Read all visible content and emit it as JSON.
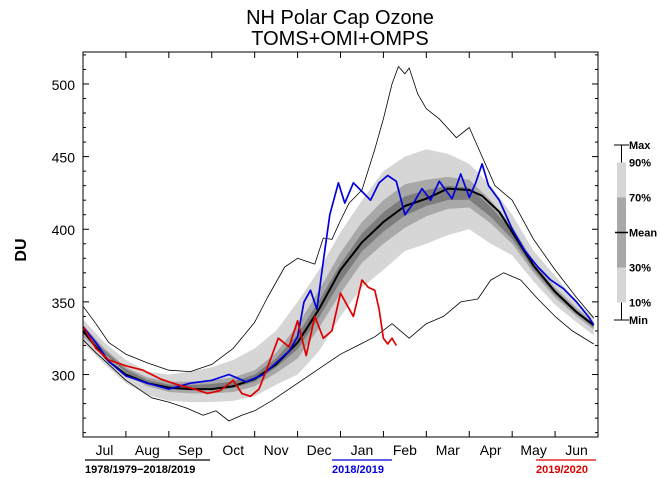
{
  "chart_data": {
    "type": "line",
    "title": "NH Polar Cap Ozone",
    "subtitle": "TOMS+OMI+OMPS",
    "ylabel": "DU",
    "ylim": [
      257,
      522
    ],
    "yticks": [
      300,
      350,
      400,
      450,
      500
    ],
    "months": [
      "Jul",
      "Aug",
      "Sep",
      "Oct",
      "Nov",
      "Dec",
      "Jan",
      "Feb",
      "Mar",
      "Apr",
      "May",
      "Jun"
    ],
    "xlim": [
      0,
      12
    ],
    "colors": {
      "mean": "#000000",
      "y2018": "#0000dd",
      "y2020": "#dd0000",
      "minmax": "#000000",
      "band90": "#d6d6d6",
      "band70": "#a8a8a8",
      "band_inner": "#7d7d7d"
    },
    "series": {
      "max": {
        "x": [
          0,
          0.3,
          0.6,
          1.0,
          1.5,
          2.0,
          2.5,
          3.0,
          3.5,
          4.0,
          4.3,
          4.7,
          5.0,
          5.4,
          5.6,
          5.8,
          6.0,
          6.2,
          6.5,
          6.8,
          7.0,
          7.2,
          7.35,
          7.5,
          7.6,
          7.8,
          8.0,
          8.3,
          8.7,
          9.0,
          9.3,
          9.6,
          10.0,
          10.5,
          11.0,
          11.5,
          11.9
        ],
        "y": [
          347,
          335,
          322,
          314,
          308,
          303,
          302,
          307,
          318,
          336,
          353,
          374,
          380,
          376,
          394,
          393,
          406,
          418,
          427,
          455,
          476,
          500,
          512,
          507,
          511,
          493,
          483,
          476,
          463,
          470,
          450,
          430,
          420,
          393,
          372,
          353,
          339
        ]
      },
      "min": {
        "x": [
          0,
          0.3,
          0.6,
          1.0,
          1.3,
          1.6,
          2.0,
          2.4,
          2.8,
          3.1,
          3.4,
          3.7,
          4.0,
          4.4,
          4.8,
          5.2,
          5.6,
          6.0,
          6.4,
          6.8,
          7.2,
          7.6,
          8.0,
          8.4,
          8.8,
          9.2,
          9.5,
          9.8,
          10.2,
          10.6,
          11.0,
          11.4,
          11.9
        ],
        "y": [
          324,
          315,
          307,
          296,
          290,
          284,
          281,
          277,
          272,
          275,
          268,
          272,
          275,
          282,
          290,
          298,
          306,
          314,
          320,
          326,
          335,
          325,
          335,
          340,
          350,
          352,
          365,
          370,
          365,
          352,
          340,
          330,
          321
        ]
      },
      "mean": {
        "x": [
          0,
          0.3,
          0.6,
          1.0,
          1.5,
          2.0,
          2.5,
          3.0,
          3.5,
          4.0,
          4.5,
          5.0,
          5.5,
          6.0,
          6.5,
          7.0,
          7.5,
          8.0,
          8.5,
          9.0,
          9.3,
          9.7,
          10.0,
          10.5,
          11.0,
          11.5,
          11.9
        ],
        "y": [
          330,
          319,
          309,
          300,
          294,
          291,
          290,
          290,
          292,
          297,
          307,
          322,
          345,
          372,
          391,
          405,
          416,
          421,
          428,
          427,
          423,
          412,
          398,
          375,
          357,
          343,
          334
        ]
      },
      "y2018": {
        "x": [
          0,
          0.3,
          0.6,
          1.0,
          1.5,
          2.0,
          2.5,
          3.0,
          3.4,
          3.8,
          4.2,
          4.5,
          4.8,
          5.0,
          5.15,
          5.3,
          5.45,
          5.6,
          5.75,
          5.95,
          6.1,
          6.3,
          6.5,
          6.7,
          6.9,
          7.1,
          7.3,
          7.5,
          7.7,
          7.9,
          8.1,
          8.3,
          8.6,
          8.8,
          9.0,
          9.15,
          9.3,
          9.45,
          9.7,
          10.0,
          10.3,
          10.6,
          10.9,
          11.2,
          11.5,
          11.8,
          11.9
        ],
        "y": [
          333,
          322,
          309,
          299,
          294,
          290,
          294,
          296,
          300,
          295,
          300,
          308,
          316,
          326,
          350,
          358,
          345,
          378,
          410,
          432,
          418,
          432,
          426,
          420,
          432,
          437,
          433,
          410,
          418,
          428,
          420,
          433,
          421,
          438,
          422,
          432,
          445,
          430,
          420,
          400,
          385,
          374,
          365,
          359,
          350,
          339,
          334
        ]
      },
      "y2020": {
        "x": [
          0,
          0.3,
          0.6,
          1.0,
          1.4,
          1.8,
          2.2,
          2.6,
          2.9,
          3.2,
          3.5,
          3.7,
          3.9,
          4.1,
          4.3,
          4.55,
          4.8,
          5.0,
          5.2,
          5.4,
          5.6,
          5.8,
          6.0,
          6.15,
          6.3,
          6.5,
          6.65,
          6.8,
          6.9,
          7.0,
          7.1,
          7.2,
          7.3
        ],
        "y": [
          333,
          318,
          310,
          306,
          303,
          297,
          293,
          290,
          287,
          289,
          296,
          287,
          285,
          290,
          305,
          325,
          319,
          337,
          313,
          340,
          325,
          330,
          356,
          348,
          340,
          365,
          360,
          358,
          345,
          325,
          321,
          325,
          320
        ]
      }
    },
    "bands": {
      "x": [
        0,
        0.5,
        1.0,
        1.5,
        2.0,
        2.5,
        3.0,
        3.5,
        4.0,
        4.5,
        5.0,
        5.5,
        6.0,
        6.5,
        7.0,
        7.5,
        8.0,
        8.5,
        9.0,
        9.5,
        10.0,
        10.5,
        11.0,
        11.5,
        11.9
      ],
      "p90": [
        338,
        322,
        310,
        302,
        300,
        302,
        305,
        310,
        318,
        330,
        350,
        372,
        398,
        420,
        440,
        450,
        455,
        452,
        445,
        430,
        410,
        385,
        368,
        350,
        340
      ],
      "p70": [
        334,
        318,
        305,
        298,
        295,
        295,
        296,
        298,
        303,
        315,
        334,
        358,
        384,
        405,
        420,
        431,
        434,
        436,
        434,
        420,
        402,
        378,
        360,
        346,
        336
      ],
      "p30": [
        326,
        313,
        300,
        292,
        288,
        287,
        287,
        288,
        292,
        301,
        311,
        332,
        356,
        377,
        390,
        401,
        409,
        414,
        415,
        404,
        390,
        370,
        353,
        340,
        331
      ],
      "p10": [
        322,
        307,
        294,
        286,
        282,
        281,
        281,
        282,
        285,
        293,
        300,
        316,
        340,
        360,
        372,
        385,
        390,
        396,
        400,
        390,
        382,
        364,
        348,
        336,
        327
      ]
    },
    "legend": {
      "climatology": "1978/1979−2018/2019",
      "year2018": "2018/2019",
      "year2020": "2019/2020"
    },
    "percentile_key": [
      "Max",
      "90%",
      "70%",
      "Mean",
      "30%",
      "10%",
      "Min"
    ]
  }
}
